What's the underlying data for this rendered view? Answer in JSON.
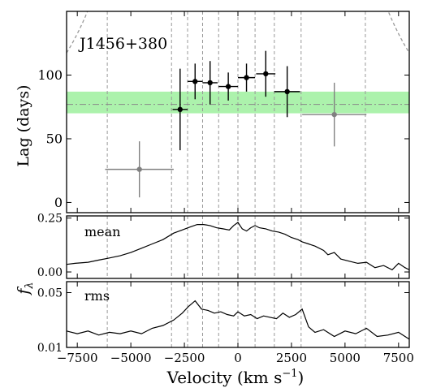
{
  "chart_data": [
    {
      "panel": "lag",
      "type": "scatter",
      "annotation": "J1456+380",
      "ylabel": "Lag (days)",
      "xlim": [
        -8000,
        8000
      ],
      "ylim": [
        -8,
        150
      ],
      "yticks": [
        0,
        50,
        100
      ],
      "band": {
        "center": 77,
        "low": 70,
        "high": 87,
        "color": "#90ee90"
      },
      "model_curve": {
        "center": 0,
        "scale": 70,
        "floor": 8,
        "color": "#999999"
      },
      "points": [
        {
          "x": -4600,
          "y": 26,
          "xerr": 1600,
          "yerr": 22,
          "color": "#808080"
        },
        {
          "x": -2700,
          "y": 73,
          "xerr": 350,
          "yerr": 32,
          "color": "#000000"
        },
        {
          "x": -2000,
          "y": 95,
          "xerr": 350,
          "yerr": 14,
          "color": "#000000"
        },
        {
          "x": -1300,
          "y": 94,
          "xerr": 350,
          "yerr": 17,
          "color": "#000000"
        },
        {
          "x": -450,
          "y": 91,
          "xerr": 450,
          "yerr": 11,
          "color": "#000000"
        },
        {
          "x": 400,
          "y": 98,
          "xerr": 400,
          "yerr": 11,
          "color": "#000000"
        },
        {
          "x": 1300,
          "y": 101,
          "xerr": 450,
          "yerr": 18,
          "color": "#000000"
        },
        {
          "x": 2300,
          "y": 87,
          "xerr": 600,
          "yerr": 20,
          "color": "#000000"
        },
        {
          "x": 4500,
          "y": 69,
          "xerr": 1500,
          "yerr": 25,
          "color": "#808080"
        }
      ]
    },
    {
      "panel": "mean",
      "type": "line",
      "annotation": "mean",
      "ylim": [
        -0.03,
        0.26
      ],
      "yticks": [
        0.0,
        0.25
      ],
      "ytick_labels": [
        "0.00",
        "0.25"
      ],
      "x": [
        -8000,
        -7600,
        -7000,
        -6500,
        -6000,
        -5500,
        -5000,
        -4500,
        -4000,
        -3500,
        -3000,
        -2600,
        -2200,
        -1900,
        -1600,
        -1300,
        -1000,
        -700,
        -400,
        -200,
        0,
        200,
        400,
        600,
        800,
        1000,
        1300,
        1600,
        1900,
        2200,
        2500,
        2800,
        3000,
        3300,
        3600,
        4000,
        4200,
        4500,
        4800,
        5200,
        5600,
        6000,
        6400,
        6800,
        7200,
        7500,
        7800,
        8000
      ],
      "y": [
        0.035,
        0.04,
        0.045,
        0.055,
        0.065,
        0.075,
        0.09,
        0.11,
        0.13,
        0.15,
        0.18,
        0.195,
        0.21,
        0.22,
        0.22,
        0.215,
        0.205,
        0.2,
        0.195,
        0.215,
        0.23,
        0.2,
        0.19,
        0.205,
        0.215,
        0.205,
        0.2,
        0.19,
        0.185,
        0.175,
        0.16,
        0.15,
        0.14,
        0.13,
        0.12,
        0.1,
        0.08,
        0.09,
        0.06,
        0.05,
        0.04,
        0.045,
        0.02,
        0.03,
        0.01,
        0.04,
        0.02,
        0.01
      ]
    },
    {
      "panel": "rms",
      "type": "line",
      "annotation": "rms",
      "ylim": [
        0.01,
        0.058
      ],
      "yticks": [
        0.01,
        0.05
      ],
      "ytick_labels": [
        "0.01",
        "0.05"
      ],
      "x": [
        -8000,
        -7500,
        -7000,
        -6500,
        -6000,
        -5500,
        -5000,
        -4500,
        -4000,
        -3500,
        -3000,
        -2600,
        -2300,
        -2000,
        -1700,
        -1400,
        -1100,
        -800,
        -500,
        -200,
        0,
        300,
        600,
        900,
        1200,
        1500,
        1800,
        2100,
        2400,
        2700,
        3000,
        3300,
        3600,
        4000,
        4500,
        5000,
        5500,
        6000,
        6500,
        7000,
        7500,
        8000
      ],
      "y": [
        0.022,
        0.02,
        0.022,
        0.019,
        0.021,
        0.02,
        0.022,
        0.02,
        0.024,
        0.026,
        0.03,
        0.035,
        0.04,
        0.044,
        0.038,
        0.037,
        0.035,
        0.036,
        0.034,
        0.033,
        0.036,
        0.033,
        0.034,
        0.031,
        0.033,
        0.032,
        0.031,
        0.035,
        0.032,
        0.034,
        0.038,
        0.025,
        0.021,
        0.023,
        0.018,
        0.022,
        0.02,
        0.024,
        0.018,
        0.019,
        0.021,
        0.016
      ]
    }
  ],
  "shared": {
    "xlabel": "Velocity (km s",
    "xlabel_exp": "−1",
    "xlabel_close": ")",
    "flux_label": "f",
    "flux_sub": "λ",
    "xticks": [
      -7500,
      -5000,
      -2500,
      0,
      2500,
      5000,
      7500
    ],
    "xtick_labels": [
      "−7500",
      "−5000",
      "−2500",
      "0",
      "2500",
      "5000",
      "7500"
    ],
    "dashed_vlines": [
      -6100,
      -3100,
      -2350,
      -1650,
      -900,
      0,
      800,
      1700,
      2950,
      5950
    ]
  }
}
